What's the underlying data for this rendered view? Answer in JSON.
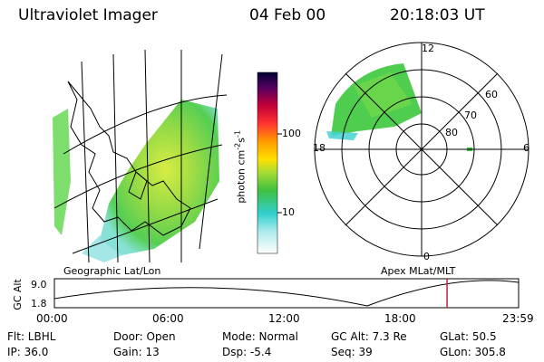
{
  "header": {
    "instrument": "Ultraviolet Imager",
    "date": "04 Feb 00",
    "time": "20:18:03 UT"
  },
  "colorbar": {
    "unit_label": "photon cm",
    "exp1": "-2",
    "mid": "s",
    "exp2": "-1",
    "tick_100": "100",
    "tick_10": "10"
  },
  "left_panel": {
    "projection_label": "Geographic Lat/Lon"
  },
  "right_panel": {
    "projection_label": "Apex  MLat/MLT",
    "mlt_labels": {
      "top": "12",
      "bottom": "0",
      "left": "18",
      "right": "6"
    },
    "lat_labels": [
      "60",
      "70",
      "80"
    ]
  },
  "altitude_plot": {
    "ylabel": "GC Alt",
    "ytick_high": "9.0",
    "ytick_low": "1.8",
    "xticks": [
      "00:00",
      "06:00",
      "12:00",
      "18:00",
      "23:59"
    ],
    "cursor_time_hours": 20.3
  },
  "info": {
    "filter": "Flt: LBHL",
    "door": "Door: Open",
    "mode": "Mode: Normal",
    "gc_alt": "GC Alt: 7.3 Re",
    "glat": "GLat:  50.5",
    "ip": "IP: 36.0",
    "gain": "Gain: 13",
    "dsp": "Dsp:    -5.4",
    "seq": "Seq: 39",
    "glon": "GLon: 305.8"
  },
  "colors": {
    "cursor": "#c0203a",
    "aurora_green": "#3cc83c",
    "aurora_yellow": "#c8e632",
    "aurora_cyan": "#46d2d2"
  }
}
